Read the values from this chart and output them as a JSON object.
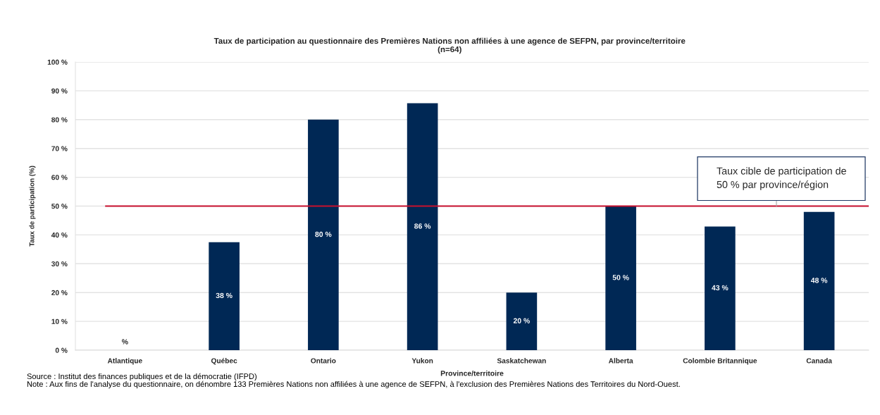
{
  "chart_data": {
    "type": "bar",
    "title": "Taux de participation au questionnaire des Premières Nations non affiliées à une agence de SEFPN, par province/territoire",
    "subtitle": "(n=64)",
    "xlabel": "Province/territoire",
    "ylabel": "Taux de participation (%)",
    "categories": [
      "Atlantique",
      "Québec",
      "Ontario",
      "Yukon",
      "Saskatchewan",
      "Alberta",
      "Colombie Britannique",
      "Canada"
    ],
    "values": [
      0,
      37.5,
      80,
      85.7,
      20,
      50,
      42.9,
      48
    ],
    "value_labels": [
      "%",
      "38 %",
      "80 %",
      "86 %",
      "20 %",
      "50 %",
      "43 %",
      "48 %"
    ],
    "color": "#002855",
    "ylim": [
      0,
      100
    ],
    "yticks": [
      {
        "value": 0,
        "label": "0 %"
      },
      {
        "value": 10,
        "label": "10 %"
      },
      {
        "value": 20,
        "label": "20 %"
      },
      {
        "value": 30,
        "label": "30 %"
      },
      {
        "value": 40,
        "label": "40 %"
      },
      {
        "value": 50,
        "label": "50 %"
      },
      {
        "value": 60,
        "label": "60 %"
      },
      {
        "value": 70,
        "label": "70 %"
      },
      {
        "value": 80,
        "label": "80 %"
      },
      {
        "value": 90,
        "label": "90 %"
      },
      {
        "value": 100,
        "label": "100 %"
      }
    ],
    "grid": "y",
    "ref_lines": [
      {
        "axis": "y",
        "value": 50,
        "label": "Taux cible de participation de 50 % par province/région",
        "color": "#c8102e"
      }
    ],
    "annotations": [
      "Source : Institut des finances publiques et de la démocratie (IFPD)",
      "Note : Aux fins de l'analyse du questionnaire, on dénombre 133 Premières Nations non affiliées à une agence de SEFPN, à l'exclusion des Premières Nations des Territoires du Nord-Ouest."
    ]
  }
}
